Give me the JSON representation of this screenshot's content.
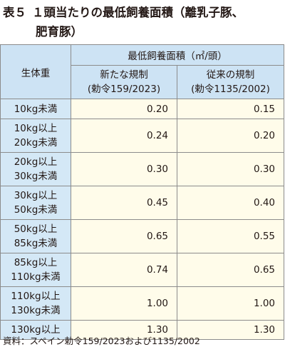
{
  "title": {
    "label": "表５",
    "line1": "１頭当たりの最低飼養面積（離乳子豚、",
    "line2": "肥育豚）"
  },
  "table": {
    "row_header": "生体重",
    "group_header": "最低飼養面積（㎡/頭）",
    "col_new": [
      "新たな規制",
      "(勅令159/2023)"
    ],
    "col_old": [
      "従来の規制",
      "(勅令1135/2002)"
    ],
    "rows": [
      {
        "weight": [
          "10kg未満"
        ],
        "new": "0.20",
        "old": "0.15"
      },
      {
        "weight": [
          "10kg以上",
          "20kg未満"
        ],
        "new": "0.24",
        "old": "0.20"
      },
      {
        "weight": [
          "20kg以上",
          "30kg未満"
        ],
        "new": "0.30",
        "old": "0.30"
      },
      {
        "weight": [
          "30kg以上",
          "50kg未満"
        ],
        "new": "0.45",
        "old": "0.40"
      },
      {
        "weight": [
          "50kg以上",
          "85kg未満"
        ],
        "new": "0.65",
        "old": "0.55"
      },
      {
        "weight": [
          "85kg以上",
          "110kg未満"
        ],
        "new": "0.74",
        "old": "0.65"
      },
      {
        "weight": [
          "110kg以上",
          "130kg未満"
        ],
        "new": "1.00",
        "old": "1.00"
      },
      {
        "weight": [
          "130kg以上"
        ],
        "new": "1.30",
        "old": "1.30"
      }
    ]
  },
  "source": "資料：スペイン勅令159/2023および1135/2002",
  "colors": {
    "header_bg": "#cde3f4",
    "category_bg": "#d4e8f6",
    "value_bg": "#fffcea",
    "border": "#8c8c8c"
  }
}
